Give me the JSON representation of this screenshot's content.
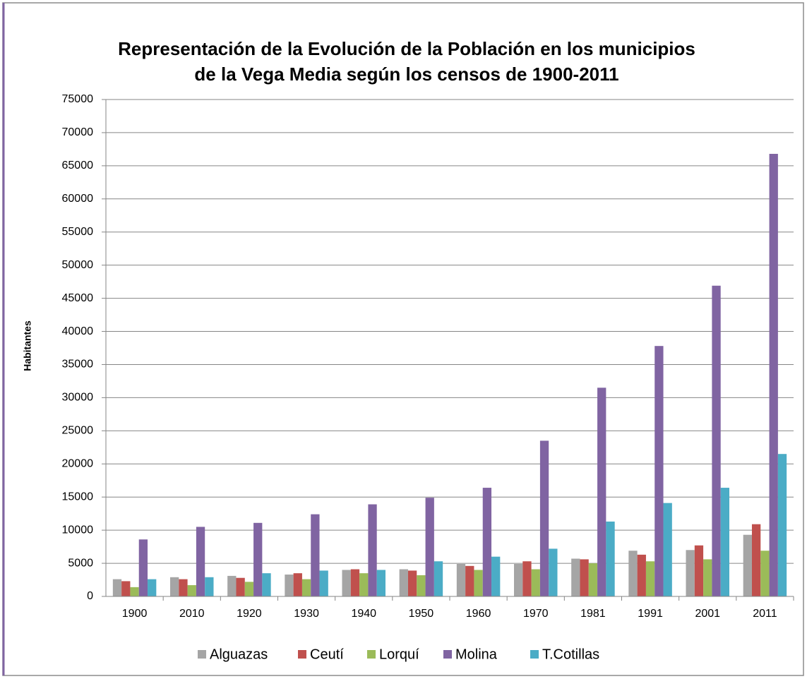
{
  "chart_data": {
    "type": "bar",
    "title": [
      "Representación de la Evolución de la Población  en los municipios",
      "de la Vega Media según los censos de 1900-2011"
    ],
    "y_label": "Habitantes",
    "categories": [
      "1900",
      "2010",
      "1920",
      "1930",
      "1940",
      "1950",
      "1960",
      "1970",
      "1981",
      "1991",
      "2001",
      "2011"
    ],
    "series": [
      {
        "name": "Alguazas",
        "color": "#a5a5a5",
        "values": [
          2600,
          2900,
          3100,
          3300,
          4000,
          4100,
          4900,
          4900,
          5700,
          6900,
          7000,
          9300
        ]
      },
      {
        "name": "Ceutí",
        "color": "#c0504d",
        "values": [
          2300,
          2600,
          2800,
          3500,
          4100,
          3900,
          4600,
          5300,
          5600,
          6300,
          7700,
          10900
        ]
      },
      {
        "name": "Lorquí",
        "color": "#9bbb59",
        "values": [
          1400,
          1700,
          2200,
          2600,
          3500,
          3200,
          4000,
          4100,
          5000,
          5300,
          5600,
          6900
        ]
      },
      {
        "name": "Molina",
        "color": "#8064a2",
        "values": [
          8600,
          10500,
          11100,
          12400,
          13900,
          14900,
          16400,
          23500,
          31500,
          37800,
          46900,
          66800
        ]
      },
      {
        "name": "T.Cotillas",
        "color": "#4bacc6",
        "values": [
          2600,
          2900,
          3500,
          3900,
          4000,
          5300,
          6000,
          7200,
          11300,
          14100,
          16400,
          21500
        ]
      }
    ],
    "ylim": [
      0,
      75000
    ],
    "yticks": [
      0,
      5000,
      10000,
      15000,
      20000,
      25000,
      30000,
      35000,
      40000,
      45000,
      50000,
      55000,
      60000,
      65000,
      70000,
      75000
    ],
    "grid": true,
    "legend": "bottom"
  }
}
